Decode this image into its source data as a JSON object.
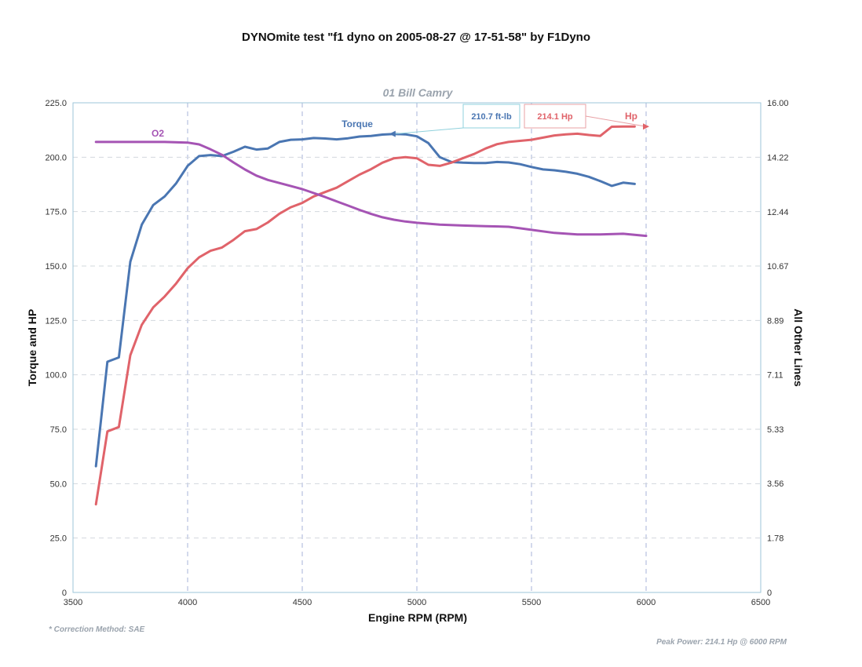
{
  "chart_data": {
    "type": "line",
    "title": "DYNOmite test \"f1 dyno on 2005-08-27 @ 17-51-58\" by F1Dyno",
    "subtitle": "01 Bill Camry",
    "xlabel": "Engine RPM (RPM)",
    "ylabel": "Torque and HP",
    "y2label": "All Other Lines",
    "xlim": [
      3500,
      6500
    ],
    "ylim": [
      0,
      225
    ],
    "y2lim": [
      0,
      16
    ],
    "xticks": [
      "3500",
      "4000",
      "4500",
      "5000",
      "5500",
      "6000",
      "6500"
    ],
    "yticks": [
      "0",
      "25.0",
      "50.0",
      "75.0",
      "100.0",
      "125.0",
      "150.0",
      "175.0",
      "200.0",
      "225.0"
    ],
    "y2ticks": [
      "0",
      "1.78",
      "3.56",
      "5.33",
      "7.11",
      "8.89",
      "10.67",
      "12.44",
      "14.22",
      "16.00"
    ],
    "grid": true,
    "series": [
      {
        "name": "Torque",
        "axis": "left",
        "color": "#4a76b2",
        "x": [
          3600,
          3650,
          3700,
          3750,
          3800,
          3850,
          3900,
          3950,
          4000,
          4050,
          4100,
          4150,
          4200,
          4250,
          4300,
          4350,
          4400,
          4450,
          4500,
          4550,
          4600,
          4650,
          4700,
          4750,
          4800,
          4850,
          4900,
          4950,
          5000,
          5050,
          5100,
          5150,
          5200,
          5250,
          5300,
          5350,
          5400,
          5450,
          5500,
          5550,
          5600,
          5650,
          5700,
          5750,
          5800,
          5850,
          5900,
          5950,
          6000
        ],
        "values": [
          58,
          106,
          108,
          152,
          169,
          178,
          182,
          188,
          196,
          200.5,
          201,
          200.5,
          202.5,
          204.8,
          203.5,
          204,
          207,
          208,
          208.2,
          208.8,
          208.6,
          208.2,
          208.7,
          209.5,
          209.8,
          210.4,
          210.7,
          210.5,
          209.6,
          206.5,
          200,
          197.8,
          197.5,
          197.3,
          197.3,
          197.8,
          197.6,
          196.8,
          195.5,
          194.4,
          194,
          193.3,
          192.4,
          191,
          189,
          186.8,
          188.3,
          187.7,
          null
        ]
      },
      {
        "name": "Hp",
        "axis": "left",
        "color": "#e0636a",
        "x": [
          3600,
          3650,
          3700,
          3750,
          3800,
          3850,
          3900,
          3950,
          4000,
          4050,
          4100,
          4150,
          4200,
          4250,
          4300,
          4350,
          4400,
          4450,
          4500,
          4550,
          4600,
          4650,
          4700,
          4750,
          4800,
          4850,
          4900,
          4950,
          5000,
          5050,
          5100,
          5150,
          5200,
          5250,
          5300,
          5350,
          5400,
          5450,
          5500,
          5550,
          5600,
          5650,
          5700,
          5750,
          5800,
          5850,
          5900,
          5950,
          6000
        ],
        "values": [
          40.5,
          74,
          76,
          109,
          123,
          131,
          136,
          142,
          149,
          154,
          157,
          158.5,
          162,
          166,
          167,
          170,
          174,
          177,
          179,
          182,
          184,
          186,
          189,
          192,
          194.5,
          197.5,
          199.5,
          200,
          199.5,
          196.5,
          196,
          197.5,
          199.5,
          201.5,
          204,
          206,
          207,
          207.5,
          208,
          209,
          210,
          210.5,
          210.8,
          210.2,
          209.8,
          214,
          214.1,
          214.1,
          null
        ]
      },
      {
        "name": "O2",
        "axis": "right",
        "color": "#a554b4",
        "x": [
          3600,
          3700,
          3800,
          3900,
          4000,
          4050,
          4100,
          4150,
          4200,
          4250,
          4300,
          4350,
          4400,
          4450,
          4500,
          4550,
          4600,
          4650,
          4700,
          4750,
          4800,
          4850,
          4900,
          4950,
          5000,
          5100,
          5200,
          5300,
          5400,
          5450,
          5500,
          5600,
          5700,
          5800,
          5900,
          6000
        ],
        "values": [
          14.72,
          14.72,
          14.72,
          14.72,
          14.7,
          14.64,
          14.48,
          14.3,
          14.05,
          13.82,
          13.62,
          13.48,
          13.38,
          13.28,
          13.18,
          13.05,
          12.92,
          12.78,
          12.64,
          12.5,
          12.37,
          12.26,
          12.18,
          12.12,
          12.08,
          12.02,
          11.99,
          11.97,
          11.95,
          11.9,
          11.85,
          11.75,
          11.7,
          11.7,
          11.72,
          11.65
        ]
      }
    ],
    "annotations": {
      "torque_peak_label": "210.7 ft-lb",
      "hp_peak_label": "214.1 Hp",
      "torque_peak_rpm": 4900,
      "torque_peak_value": 210.7,
      "hp_peak_rpm": 6000,
      "hp_peak_value": 214.1
    },
    "footnote_left": "* Correction Method: SAE",
    "footnote_right": "Peak Power: 214.1 Hp @ 6000 RPM"
  }
}
